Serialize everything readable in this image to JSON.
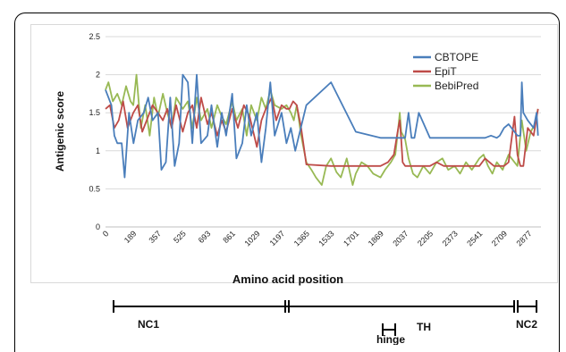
{
  "chart_data": {
    "type": "line",
    "xlabel": "Amino acid position",
    "ylabel": "Antigenic score",
    "ylim": [
      0,
      2.5
    ],
    "yticks": [
      "0",
      "0.5",
      "1",
      "1.5",
      "2",
      "2.5"
    ],
    "xlim": [
      0,
      2960
    ],
    "xticks": [
      "0",
      "189",
      "357",
      "525",
      "693",
      "861",
      "1029",
      "1197",
      "1365",
      "1533",
      "1701",
      "1869",
      "2037",
      "2205",
      "2373",
      "2541",
      "2709",
      "2877"
    ],
    "grid": true,
    "legend_position": "top-right",
    "series": [
      {
        "name": "CBTOPE",
        "color": "#4a7ebb",
        "x": [
          0,
          40,
          60,
          80,
          110,
          130,
          160,
          190,
          220,
          260,
          290,
          320,
          357,
          380,
          410,
          440,
          470,
          500,
          525,
          560,
          590,
          620,
          650,
          693,
          720,
          760,
          790,
          820,
          861,
          890,
          930,
          960,
          990,
          1029,
          1060,
          1090,
          1120,
          1150,
          1197,
          1230,
          1260,
          1290,
          1365,
          1533,
          1701,
          1869,
          1950,
          1995,
          2010,
          2037,
          2060,
          2080,
          2100,
          2130,
          2205,
          2373,
          2541,
          2580,
          2620,
          2660,
          2680,
          2709,
          2740,
          2800,
          2820,
          2830,
          2840,
          2870,
          2910,
          2930,
          2940
        ],
        "y": [
          1.8,
          1.6,
          1.2,
          1.1,
          1.1,
          0.65,
          1.5,
          1.1,
          1.4,
          1.5,
          1.7,
          1.4,
          1.5,
          0.75,
          0.85,
          1.7,
          0.8,
          1.1,
          2.0,
          1.9,
          1.1,
          2.0,
          1.1,
          1.2,
          1.6,
          1.05,
          1.5,
          1.2,
          1.75,
          0.9,
          1.1,
          1.6,
          1.2,
          1.5,
          0.85,
          1.3,
          1.9,
          1.2,
          1.5,
          1.1,
          1.3,
          1.0,
          1.6,
          1.9,
          1.25,
          1.17,
          1.17,
          1.17,
          1.17,
          1.17,
          1.5,
          1.17,
          1.17,
          1.5,
          1.17,
          1.17,
          1.17,
          1.17,
          1.2,
          1.17,
          1.2,
          1.3,
          1.35,
          1.2,
          1.2,
          1.9,
          1.5,
          1.4,
          1.3,
          1.5,
          1.2
        ]
      },
      {
        "name": "EpiT",
        "color": "#be4b48",
        "x": [
          0,
          30,
          60,
          90,
          120,
          150,
          189,
          220,
          250,
          290,
          320,
          357,
          390,
          420,
          450,
          480,
          525,
          560,
          590,
          620,
          650,
          693,
          720,
          760,
          790,
          820,
          861,
          900,
          940,
          980,
          1029,
          1060,
          1090,
          1130,
          1160,
          1197,
          1230,
          1250,
          1275,
          1300,
          1330,
          1365,
          1533,
          1701,
          1869,
          1920,
          1960,
          1990,
          2000,
          2010,
          2020,
          2037,
          2060,
          2100,
          2150,
          2205,
          2250,
          2300,
          2373,
          2420,
          2460,
          2500,
          2541,
          2580,
          2610,
          2640,
          2660,
          2680,
          2709,
          2740,
          2780,
          2800,
          2820,
          2840,
          2870,
          2910,
          2940
        ],
        "y": [
          1.55,
          1.6,
          1.3,
          1.4,
          1.65,
          1.3,
          1.5,
          1.6,
          1.25,
          1.45,
          1.6,
          1.5,
          1.4,
          1.55,
          1.3,
          1.6,
          1.25,
          1.5,
          1.6,
          1.3,
          1.7,
          1.35,
          1.5,
          1.2,
          1.4,
          1.25,
          1.55,
          1.3,
          1.6,
          1.45,
          1.05,
          1.4,
          1.55,
          1.7,
          1.4,
          1.6,
          1.55,
          1.55,
          1.65,
          1.6,
          1.3,
          0.82,
          0.8,
          0.8,
          0.8,
          0.85,
          0.95,
          1.3,
          1.4,
          1.15,
          0.85,
          0.8,
          0.8,
          0.8,
          0.8,
          0.8,
          0.85,
          0.8,
          0.8,
          0.8,
          0.8,
          0.8,
          0.8,
          0.9,
          0.85,
          0.8,
          0.8,
          0.8,
          0.8,
          0.85,
          1.45,
          0.95,
          0.8,
          0.8,
          1.3,
          1.2,
          1.55
        ]
      },
      {
        "name": "BebiPred",
        "color": "#98b954",
        "x": [
          0,
          20,
          50,
          80,
          110,
          140,
          170,
          189,
          210,
          240,
          270,
          300,
          330,
          357,
          390,
          420,
          450,
          480,
          525,
          560,
          590,
          620,
          650,
          693,
          720,
          760,
          790,
          820,
          861,
          890,
          930,
          960,
          990,
          1029,
          1060,
          1090,
          1120,
          1150,
          1197,
          1230,
          1260,
          1280,
          1300,
          1330,
          1365,
          1400,
          1430,
          1470,
          1500,
          1533,
          1570,
          1600,
          1640,
          1680,
          1701,
          1740,
          1780,
          1820,
          1869,
          1900,
          1940,
          1970,
          1990,
          2000,
          2010,
          2037,
          2060,
          2090,
          2120,
          2160,
          2205,
          2250,
          2290,
          2330,
          2373,
          2410,
          2450,
          2490,
          2541,
          2570,
          2600,
          2630,
          2660,
          2700,
          2709,
          2740,
          2780,
          2800,
          2830,
          2860,
          2890,
          2920,
          2940
        ],
        "y": [
          1.8,
          1.9,
          1.65,
          1.75,
          1.6,
          1.85,
          1.65,
          1.6,
          2.0,
          1.3,
          1.6,
          1.2,
          1.7,
          1.45,
          1.75,
          1.5,
          1.3,
          1.7,
          1.55,
          1.65,
          1.3,
          1.7,
          1.4,
          1.55,
          1.3,
          1.6,
          1.45,
          1.35,
          1.65,
          1.4,
          1.55,
          1.2,
          1.6,
          1.4,
          1.7,
          1.55,
          1.8,
          1.6,
          1.55,
          1.6,
          1.5,
          1.4,
          1.6,
          1.2,
          0.85,
          0.75,
          0.65,
          0.55,
          0.8,
          0.9,
          0.72,
          0.65,
          0.9,
          0.55,
          0.7,
          0.85,
          0.8,
          0.7,
          0.65,
          0.75,
          0.85,
          0.95,
          1.3,
          1.5,
          1.25,
          1.15,
          0.9,
          0.7,
          0.65,
          0.8,
          0.7,
          0.85,
          0.9,
          0.75,
          0.8,
          0.7,
          0.85,
          0.75,
          0.9,
          0.95,
          0.8,
          0.7,
          0.85,
          0.75,
          0.8,
          0.95,
          0.85,
          0.8,
          1.4,
          1.0,
          1.25,
          1.35,
          1.55
        ]
      }
    ]
  },
  "domains": {
    "nc1": "NC1",
    "th": "TH",
    "hinge": "hinge",
    "nc2": "NC2"
  }
}
